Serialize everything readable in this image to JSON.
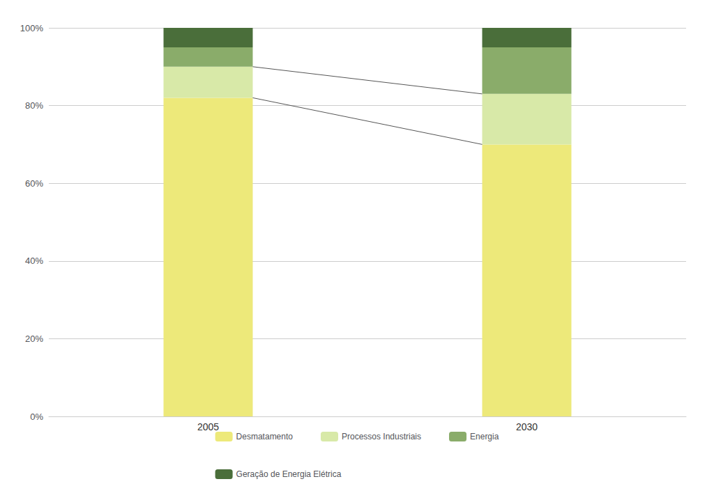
{
  "chart_data": {
    "type": "bar",
    "stacked": true,
    "categories": [
      "2005",
      "2030"
    ],
    "series": [
      {
        "name": "Desmatamento",
        "color": "#ede97a",
        "values": [
          82,
          70
        ]
      },
      {
        "name": "Processos Industriais",
        "color": "#d8e9a8",
        "values": [
          8,
          13
        ]
      },
      {
        "name": "Energia",
        "color": "#8aac6a",
        "values": [
          5,
          12
        ]
      },
      {
        "name": "Geração de Energia Elétrica",
        "color": "#4a6e3a",
        "values": [
          5,
          5
        ]
      }
    ],
    "ylim": [
      0,
      100
    ],
    "yticks": [
      {
        "value": 0,
        "label": "0%"
      },
      {
        "value": 20,
        "label": "20%"
      },
      {
        "value": 40,
        "label": "40%"
      },
      {
        "value": 60,
        "label": "60%"
      },
      {
        "value": 80,
        "label": "80%"
      },
      {
        "value": 100,
        "label": "100%"
      }
    ],
    "grid": true,
    "legend": "bottom"
  }
}
